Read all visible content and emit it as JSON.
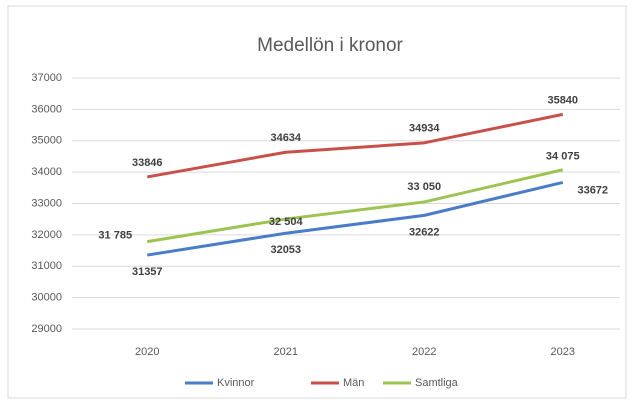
{
  "chart_data": {
    "type": "line",
    "title": "Medellön i kronor",
    "categories": [
      "2020",
      "2021",
      "2022",
      "2023"
    ],
    "series": [
      {
        "name": "Kvinnor",
        "color": "#4a7cc7",
        "values": [
          31357,
          32053,
          32622,
          33672
        ]
      },
      {
        "name": "Män",
        "color": "#c9504a",
        "values": [
          33846,
          34634,
          34934,
          35840
        ]
      },
      {
        "name": "Samtliga",
        "color": "#9dc452",
        "values": [
          31785,
          32504,
          33050,
          34075
        ],
        "value_labels": [
          "31 785",
          "32 504",
          "33 050",
          "34 075"
        ]
      }
    ],
    "ylim": [
      29000,
      37000
    ],
    "yticks": [
      29000,
      30000,
      31000,
      32000,
      33000,
      34000,
      35000,
      36000,
      37000
    ],
    "grid": true,
    "legend": "bottom"
  }
}
